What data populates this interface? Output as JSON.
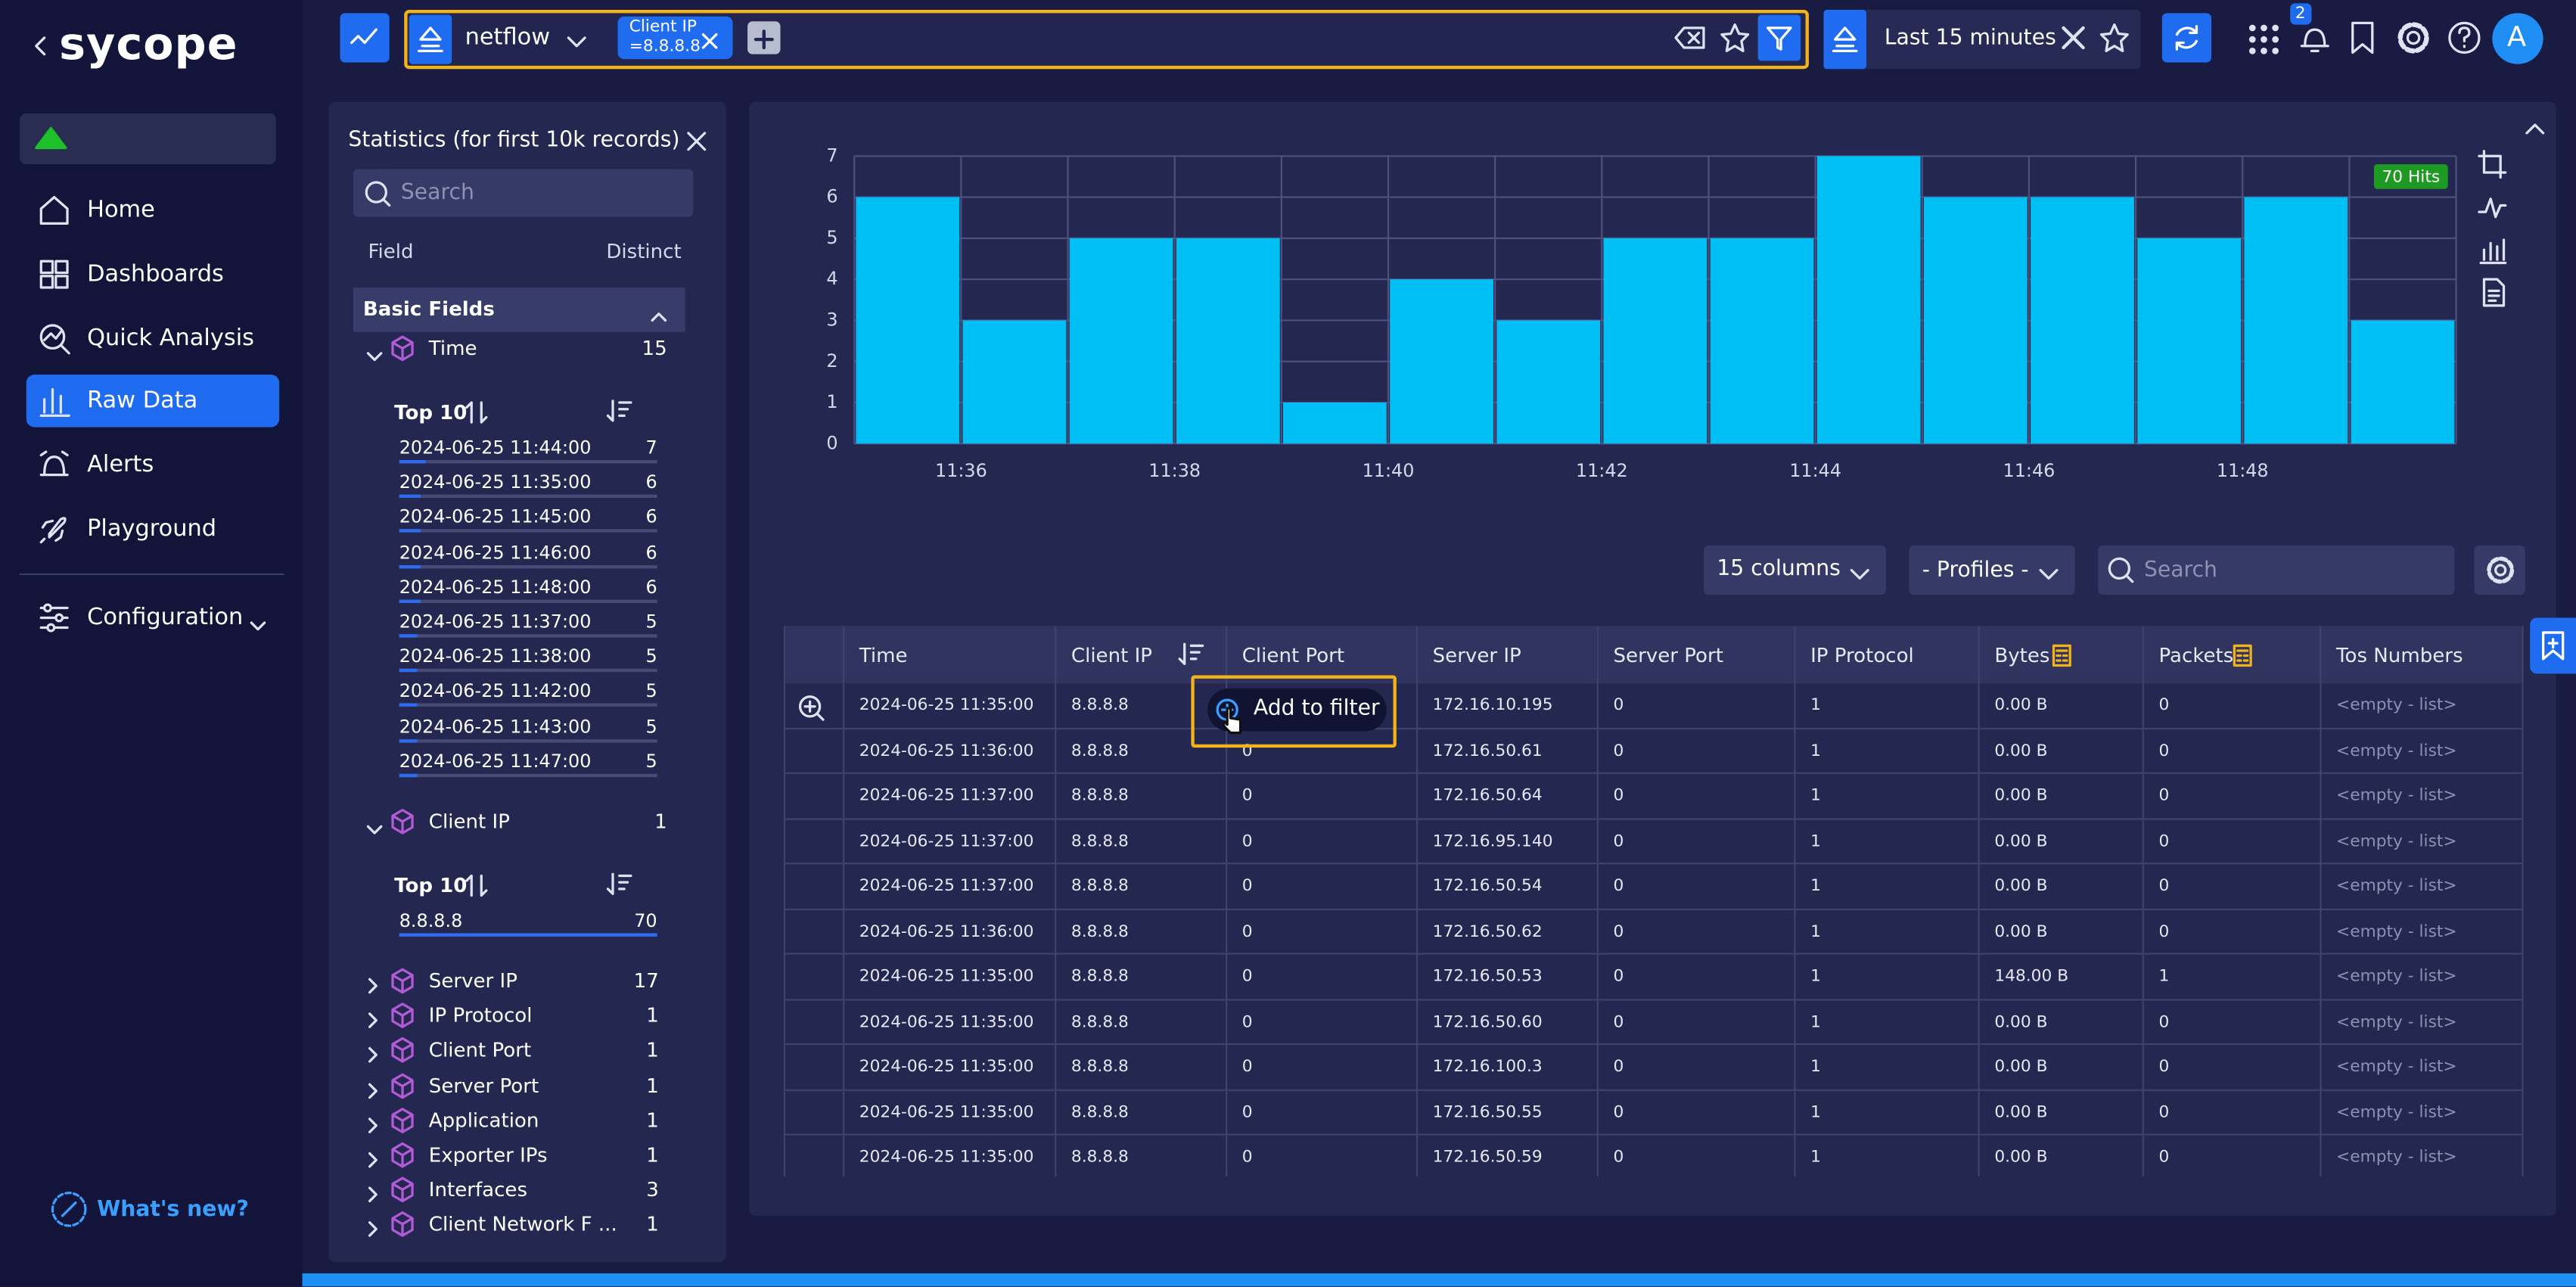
{
  "sidebar": {
    "logo": "sycope",
    "nav": [
      "Home",
      "Dashboards",
      "Quick Analysis",
      "Raw Data",
      "Alerts",
      "Playground"
    ],
    "configuration": "Configuration",
    "whats_new": "What's new?"
  },
  "topbar": {
    "source": "netflow",
    "filter_field": "Client IP",
    "filter_value": "=8.8.8.8",
    "time_range": "Last 15 minutes",
    "notifications": 2,
    "avatar": "A"
  },
  "statistics": {
    "title": "Statistics (for first 10k records)",
    "search_placeholder": "Search",
    "col_field": "Field",
    "col_distinct": "Distinct",
    "section": "Basic Fields",
    "time": {
      "name": "Time",
      "distinct": 15,
      "top_label": "Top 10",
      "items": [
        {
          "label": "2024-06-25 11:44:00",
          "count": 7
        },
        {
          "label": "2024-06-25 11:35:00",
          "count": 6
        },
        {
          "label": "2024-06-25 11:45:00",
          "count": 6
        },
        {
          "label": "2024-06-25 11:46:00",
          "count": 6
        },
        {
          "label": "2024-06-25 11:48:00",
          "count": 6
        },
        {
          "label": "2024-06-25 11:37:00",
          "count": 5
        },
        {
          "label": "2024-06-25 11:38:00",
          "count": 5
        },
        {
          "label": "2024-06-25 11:42:00",
          "count": 5
        },
        {
          "label": "2024-06-25 11:43:00",
          "count": 5
        },
        {
          "label": "2024-06-25 11:47:00",
          "count": 5
        }
      ]
    },
    "client_ip": {
      "name": "Client IP",
      "distinct": 1,
      "top_label": "Top 10",
      "items": [
        {
          "label": "8.8.8.8",
          "count": 70
        }
      ]
    },
    "fields": [
      {
        "name": "Server IP",
        "distinct": 17
      },
      {
        "name": "IP Protocol",
        "distinct": 1
      },
      {
        "name": "Client Port",
        "distinct": 1
      },
      {
        "name": "Server Port",
        "distinct": 1
      },
      {
        "name": "Application",
        "distinct": 1
      },
      {
        "name": "Exporter IPs",
        "distinct": 1
      },
      {
        "name": "Interfaces",
        "distinct": 3
      },
      {
        "name": "Client Network F ...",
        "distinct": 1
      }
    ]
  },
  "chart_data": {
    "type": "bar",
    "categories": [
      null,
      "11:36",
      null,
      "11:38",
      null,
      "11:40",
      null,
      "11:42",
      null,
      "11:44",
      null,
      "11:46",
      null,
      "11:48",
      null
    ],
    "values": [
      6,
      3,
      5,
      5,
      1,
      4,
      3,
      5,
      5,
      7,
      6,
      6,
      5,
      6,
      3
    ],
    "color": "#00bff5",
    "ylim": [
      0,
      7
    ],
    "yticks": [
      0,
      1,
      2,
      3,
      4,
      5,
      6,
      7
    ],
    "grid": true,
    "badge": "70 Hits"
  },
  "toolbar": {
    "columns": "15 columns",
    "profiles": "- Profiles -",
    "search_placeholder": "Search"
  },
  "table": {
    "columns": [
      "Time",
      "Client IP",
      "Client Port",
      "Server IP",
      "Server Port",
      "IP Protocol",
      "Bytes",
      "Packets",
      "Tos Numbers"
    ],
    "rows": [
      [
        "2024-06-25 11:35:00",
        "8.8.8.8",
        null,
        "172.16.10.195",
        "0",
        "1",
        "0.00 B",
        "0",
        "<empty - list>"
      ],
      [
        "2024-06-25 11:36:00",
        "8.8.8.8",
        "0",
        "172.16.50.61",
        "0",
        "1",
        "0.00 B",
        "0",
        "<empty - list>"
      ],
      [
        "2024-06-25 11:37:00",
        "8.8.8.8",
        "0",
        "172.16.50.64",
        "0",
        "1",
        "0.00 B",
        "0",
        "<empty - list>"
      ],
      [
        "2024-06-25 11:37:00",
        "8.8.8.8",
        "0",
        "172.16.95.140",
        "0",
        "1",
        "0.00 B",
        "0",
        "<empty - list>"
      ],
      [
        "2024-06-25 11:37:00",
        "8.8.8.8",
        "0",
        "172.16.50.54",
        "0",
        "1",
        "0.00 B",
        "0",
        "<empty - list>"
      ],
      [
        "2024-06-25 11:36:00",
        "8.8.8.8",
        "0",
        "172.16.50.62",
        "0",
        "1",
        "0.00 B",
        "0",
        "<empty - list>"
      ],
      [
        "2024-06-25 11:35:00",
        "8.8.8.8",
        "0",
        "172.16.50.53",
        "0",
        "1",
        "148.00 B",
        "1",
        "<empty - list>"
      ],
      [
        "2024-06-25 11:35:00",
        "8.8.8.8",
        "0",
        "172.16.50.60",
        "0",
        "1",
        "0.00 B",
        "0",
        "<empty - list>"
      ],
      [
        "2024-06-25 11:35:00",
        "8.8.8.8",
        "0",
        "172.16.100.3",
        "0",
        "1",
        "0.00 B",
        "0",
        "<empty - list>"
      ],
      [
        "2024-06-25 11:35:00",
        "8.8.8.8",
        "0",
        "172.16.50.55",
        "0",
        "1",
        "0.00 B",
        "0",
        "<empty - list>"
      ],
      [
        "2024-06-25 11:35:00",
        "8.8.8.8",
        "0",
        "172.16.50.59",
        "0",
        "1",
        "0.00 B",
        "0",
        "<empty - list>"
      ]
    ]
  },
  "tooltip": "Add to filter"
}
